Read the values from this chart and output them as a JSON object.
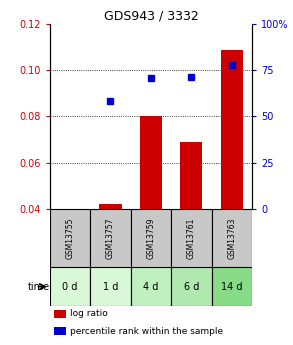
{
  "title": "GDS943 / 3332",
  "samples": [
    "GSM13755",
    "GSM13757",
    "GSM13759",
    "GSM13761",
    "GSM13763"
  ],
  "time_labels": [
    "0 d",
    "1 d",
    "4 d",
    "6 d",
    "14 d"
  ],
  "log_ratio": [
    0.0,
    0.042,
    0.08,
    0.069,
    0.109
  ],
  "percentile_rank": [
    null,
    0.0868,
    0.0965,
    0.0972,
    0.1025
  ],
  "left_ylim": [
    0.04,
    0.12
  ],
  "right_ylim": [
    0,
    100
  ],
  "left_yticks": [
    0.04,
    0.06,
    0.08,
    0.1,
    0.12
  ],
  "right_yticks": [
    0,
    25,
    50,
    75,
    100
  ],
  "left_yticklabels": [
    "0.04",
    "0.06",
    "0.08",
    "0.10",
    "0.12"
  ],
  "right_yticklabels": [
    "0",
    "25",
    "50",
    "75",
    "100%"
  ],
  "bar_color": "#cc0000",
  "dot_color": "#0000cc",
  "sample_bg_color": "#c8c8c8",
  "time_bg_colors": [
    "#d8f8d8",
    "#d8f8d8",
    "#c0f0c0",
    "#b0e8b0",
    "#88dc88"
  ],
  "bar_width": 0.55,
  "grid_yticks": [
    0.06,
    0.08,
    0.1
  ],
  "legend_bar_label": "log ratio",
  "legend_dot_label": "percentile rank within the sample",
  "time_label": "time"
}
